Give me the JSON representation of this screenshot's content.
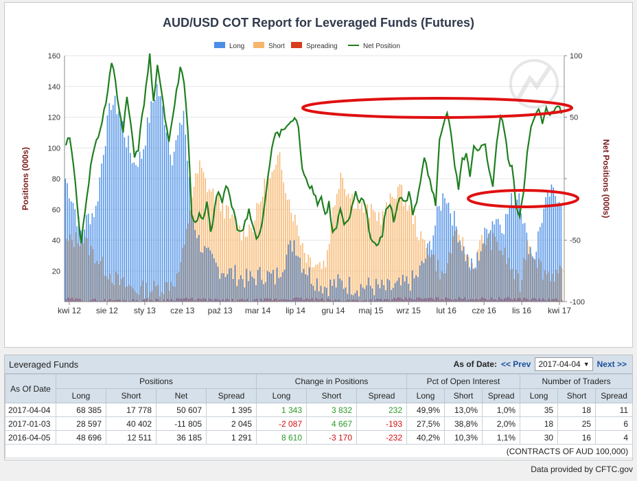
{
  "chart_data": {
    "type": "bar",
    "title": "AUD/USD COT Report for Leveraged Funds (Futures)",
    "ylabel": "Positions (000s)",
    "y2label": "Net Positions (000s)",
    "ylim": [
      0,
      160
    ],
    "y2lim": [
      -100,
      100
    ],
    "yticks": [
      0,
      20,
      40,
      60,
      80,
      100,
      120,
      140,
      160
    ],
    "y2ticks": [
      -100,
      -50,
      0,
      50,
      100
    ],
    "ytick_labels": [
      "",
      "20",
      "40",
      "60",
      "80",
      "100",
      "120",
      "140",
      "160"
    ],
    "y2tick_labels": [
      "-100",
      "-50",
      "",
      "50",
      "100"
    ],
    "xticks": [
      "kwi 12",
      "sie 12",
      "sty 13",
      "cze 13",
      "paź 13",
      "mar 14",
      "lip 14",
      "gru 14",
      "maj 15",
      "wrz 15",
      "lut 16",
      "cze 16",
      "lis 16",
      "kwi 17"
    ],
    "legend": [
      {
        "name": "Long",
        "color": "#4a8ee6"
      },
      {
        "name": "Short",
        "color": "#f7b56b"
      },
      {
        "name": "Spreading",
        "color": "#d63c1c"
      },
      {
        "name": "Net Position",
        "color": "#1e7f1e"
      }
    ],
    "legend_position": "top-center",
    "period": "weekly",
    "long_weekly_keypoints": [
      [
        0,
        80
      ],
      [
        4,
        65
      ],
      [
        8,
        45
      ],
      [
        12,
        55
      ],
      [
        16,
        60
      ],
      [
        20,
        100
      ],
      [
        24,
        130
      ],
      [
        28,
        125
      ],
      [
        32,
        105
      ],
      [
        36,
        90
      ],
      [
        40,
        95
      ],
      [
        44,
        120
      ],
      [
        48,
        140
      ],
      [
        52,
        120
      ],
      [
        56,
        95
      ],
      [
        60,
        110
      ],
      [
        62,
        125
      ],
      [
        66,
        60
      ],
      [
        70,
        40
      ],
      [
        74,
        30
      ],
      [
        80,
        22
      ],
      [
        88,
        18
      ],
      [
        96,
        14
      ],
      [
        104,
        18
      ],
      [
        110,
        15
      ],
      [
        116,
        30
      ],
      [
        120,
        40
      ],
      [
        124,
        25
      ],
      [
        130,
        15
      ],
      [
        136,
        10
      ],
      [
        144,
        12
      ],
      [
        152,
        10
      ],
      [
        160,
        10
      ],
      [
        168,
        8
      ],
      [
        176,
        10
      ],
      [
        184,
        15
      ],
      [
        188,
        25
      ],
      [
        192,
        40
      ],
      [
        196,
        60
      ],
      [
        199,
        72
      ],
      [
        202,
        60
      ],
      [
        206,
        45
      ],
      [
        210,
        30
      ],
      [
        214,
        20
      ],
      [
        218,
        35
      ],
      [
        222,
        50
      ],
      [
        226,
        55
      ],
      [
        230,
        50
      ],
      [
        234,
        65
      ],
      [
        238,
        72
      ],
      [
        242,
        40
      ],
      [
        246,
        30
      ],
      [
        250,
        55
      ],
      [
        254,
        70
      ],
      [
        258,
        70
      ],
      [
        260,
        68
      ]
    ],
    "short_weekly_keypoints": [
      [
        0,
        38
      ],
      [
        8,
        42
      ],
      [
        12,
        35
      ],
      [
        20,
        22
      ],
      [
        28,
        12
      ],
      [
        36,
        8
      ],
      [
        44,
        8
      ],
      [
        52,
        10
      ],
      [
        58,
        15
      ],
      [
        62,
        35
      ],
      [
        66,
        70
      ],
      [
        70,
        88
      ],
      [
        74,
        75
      ],
      [
        80,
        65
      ],
      [
        86,
        55
      ],
      [
        92,
        45
      ],
      [
        98,
        50
      ],
      [
        104,
        75
      ],
      [
        110,
        85
      ],
      [
        112,
        95
      ],
      [
        116,
        70
      ],
      [
        122,
        45
      ],
      [
        126,
        30
      ],
      [
        132,
        25
      ],
      [
        136,
        25
      ],
      [
        140,
        60
      ],
      [
        144,
        85
      ],
      [
        148,
        70
      ],
      [
        152,
        65
      ],
      [
        156,
        60
      ],
      [
        160,
        58
      ],
      [
        166,
        55
      ],
      [
        170,
        65
      ],
      [
        174,
        75
      ],
      [
        178,
        65
      ],
      [
        182,
        55
      ],
      [
        186,
        40
      ],
      [
        190,
        35
      ],
      [
        194,
        25
      ],
      [
        198,
        15
      ],
      [
        202,
        35
      ],
      [
        206,
        45
      ],
      [
        210,
        30
      ],
      [
        214,
        22
      ],
      [
        218,
        40
      ],
      [
        222,
        40
      ],
      [
        226,
        38
      ],
      [
        230,
        30
      ],
      [
        234,
        20
      ],
      [
        238,
        10
      ],
      [
        242,
        40
      ],
      [
        246,
        30
      ],
      [
        250,
        20
      ],
      [
        254,
        18
      ],
      [
        258,
        18
      ],
      [
        260,
        17
      ]
    ],
    "spreading_weekly_keypoints": [
      [
        0,
        2
      ],
      [
        10,
        1
      ],
      [
        30,
        1
      ],
      [
        50,
        1
      ],
      [
        60,
        2
      ],
      [
        80,
        1
      ],
      [
        100,
        1
      ],
      [
        120,
        2
      ],
      [
        140,
        1
      ],
      [
        160,
        1
      ],
      [
        180,
        2
      ],
      [
        200,
        2
      ],
      [
        220,
        2
      ],
      [
        240,
        2
      ],
      [
        260,
        1
      ]
    ],
    "net_weekly_keypoints": [
      [
        0,
        25
      ],
      [
        2,
        35
      ],
      [
        4,
        10
      ],
      [
        6,
        -20
      ],
      [
        8,
        -55
      ],
      [
        10,
        -25
      ],
      [
        14,
        20
      ],
      [
        18,
        40
      ],
      [
        22,
        70
      ],
      [
        24,
        95
      ],
      [
        26,
        80
      ],
      [
        28,
        55
      ],
      [
        30,
        40
      ],
      [
        32,
        65
      ],
      [
        34,
        45
      ],
      [
        36,
        20
      ],
      [
        38,
        25
      ],
      [
        40,
        50
      ],
      [
        42,
        75
      ],
      [
        44,
        100
      ],
      [
        46,
        60
      ],
      [
        48,
        90
      ],
      [
        50,
        75
      ],
      [
        52,
        50
      ],
      [
        54,
        30
      ],
      [
        56,
        50
      ],
      [
        58,
        70
      ],
      [
        60,
        90
      ],
      [
        62,
        80
      ],
      [
        64,
        40
      ],
      [
        66,
        -30
      ],
      [
        68,
        -35
      ],
      [
        70,
        -30
      ],
      [
        72,
        -35
      ],
      [
        74,
        -20
      ],
      [
        76,
        -45
      ],
      [
        78,
        -25
      ],
      [
        80,
        -10
      ],
      [
        82,
        -20
      ],
      [
        84,
        -5
      ],
      [
        86,
        -15
      ],
      [
        88,
        -25
      ],
      [
        90,
        -40
      ],
      [
        92,
        -45
      ],
      [
        96,
        -25
      ],
      [
        100,
        -50
      ],
      [
        102,
        -45
      ],
      [
        104,
        -25
      ],
      [
        106,
        0
      ],
      [
        108,
        25
      ],
      [
        110,
        40
      ],
      [
        112,
        35
      ],
      [
        114,
        40
      ],
      [
        118,
        45
      ],
      [
        120,
        50
      ],
      [
        122,
        40
      ],
      [
        124,
        10
      ],
      [
        126,
        0
      ],
      [
        128,
        -5
      ],
      [
        130,
        -10
      ],
      [
        132,
        -20
      ],
      [
        134,
        -15
      ],
      [
        136,
        -30
      ],
      [
        138,
        -20
      ],
      [
        140,
        -45
      ],
      [
        142,
        -40
      ],
      [
        144,
        -25
      ],
      [
        146,
        -40
      ],
      [
        148,
        -35
      ],
      [
        150,
        -25
      ],
      [
        152,
        -10
      ],
      [
        154,
        -20
      ],
      [
        156,
        -15
      ],
      [
        158,
        -30
      ],
      [
        160,
        -50
      ],
      [
        164,
        -55
      ],
      [
        166,
        -45
      ],
      [
        168,
        -25
      ],
      [
        170,
        -20
      ],
      [
        172,
        -35
      ],
      [
        174,
        -20
      ],
      [
        176,
        -15
      ],
      [
        178,
        -20
      ],
      [
        180,
        -10
      ],
      [
        182,
        -30
      ],
      [
        184,
        -20
      ],
      [
        186,
        0
      ],
      [
        188,
        20
      ],
      [
        190,
        5
      ],
      [
        192,
        -10
      ],
      [
        194,
        -20
      ],
      [
        196,
        30
      ],
      [
        198,
        45
      ],
      [
        200,
        55
      ],
      [
        202,
        35
      ],
      [
        204,
        10
      ],
      [
        206,
        -10
      ],
      [
        208,
        15
      ],
      [
        210,
        20
      ],
      [
        212,
        0
      ],
      [
        214,
        25
      ],
      [
        216,
        20
      ],
      [
        218,
        25
      ],
      [
        220,
        30
      ],
      [
        222,
        5
      ],
      [
        224,
        -5
      ],
      [
        226,
        30
      ],
      [
        228,
        50
      ],
      [
        230,
        40
      ],
      [
        232,
        15
      ],
      [
        234,
        10
      ],
      [
        236,
        -20
      ],
      [
        238,
        -30
      ],
      [
        240,
        -10
      ],
      [
        242,
        20
      ],
      [
        244,
        40
      ],
      [
        246,
        50
      ],
      [
        248,
        55
      ],
      [
        250,
        45
      ],
      [
        252,
        60
      ],
      [
        254,
        50
      ],
      [
        256,
        55
      ],
      [
        258,
        60
      ],
      [
        260,
        55
      ]
    ],
    "annotations": [
      {
        "shape": "ellipse",
        "color": "#e01010",
        "around": "net position peaks at about 55–60"
      },
      {
        "shape": "ellipse",
        "color": "#e01010",
        "around": "long position peaks at about 70–75"
      }
    ],
    "grid": "horizontal-light"
  },
  "table": {
    "title": "Leveraged Funds",
    "as_of_label": "As of Date:",
    "prev_label": "<< Prev",
    "next_label": "Next >>",
    "selected_date": "2017-04-04",
    "dropdown_arrow": "▼",
    "row_header": "As Of Date",
    "groups": [
      "Positions",
      "Change in Positions",
      "Pct of Open Interest",
      "Number of Traders"
    ],
    "subheaders": [
      "Long",
      "Short",
      "Net",
      "Spread",
      "Long",
      "Short",
      "Spread",
      "Long",
      "Short",
      "Spread",
      "Long",
      "Short",
      "Spread"
    ],
    "rows": [
      {
        "date": "2017-04-04",
        "cells": [
          "68 385",
          "17 778",
          "50 607",
          "1 395",
          "1 343",
          "3 832",
          "232",
          "49,9%",
          "13,0%",
          "1,0%",
          "35",
          "18",
          "11"
        ],
        "signs": [
          "",
          "",
          "",
          "",
          "pos",
          "pos",
          "pos",
          "",
          "",
          "",
          "",
          "",
          ""
        ]
      },
      {
        "date": "2017-01-03",
        "cells": [
          "28 597",
          "40 402",
          "-11 805",
          "2 045",
          "-2 087",
          "4 667",
          "-193",
          "27,5%",
          "38,8%",
          "2,0%",
          "18",
          "25",
          "6"
        ],
        "signs": [
          "",
          "",
          "",
          "",
          "neg",
          "pos",
          "neg",
          "",
          "",
          "",
          "",
          "",
          ""
        ]
      },
      {
        "date": "2016-04-05",
        "cells": [
          "48 696",
          "12 511",
          "36 185",
          "1 291",
          "8 610",
          "-3 170",
          "-232",
          "40,2%",
          "10,3%",
          "1,1%",
          "30",
          "16",
          "4"
        ],
        "signs": [
          "",
          "",
          "",
          "",
          "pos",
          "neg",
          "neg",
          "",
          "",
          "",
          "",
          "",
          ""
        ]
      }
    ],
    "footnote": "(CONTRACTS OF AUD 100,000)"
  },
  "credit": "Data provided by CFTC.gov"
}
